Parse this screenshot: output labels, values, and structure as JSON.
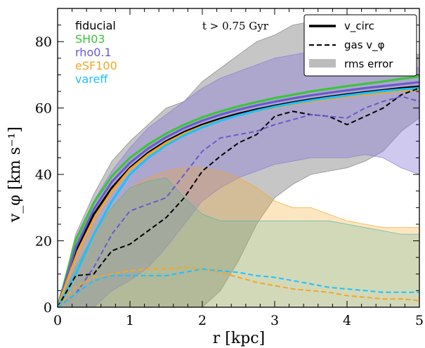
{
  "chart_data": {
    "type": "line",
    "xlabel": "r [kpc]",
    "ylabel": "v_φ [km s⁻¹]",
    "xlim": [
      0,
      5
    ],
    "ylim": [
      0,
      90
    ],
    "xticks": [
      0,
      1,
      2,
      3,
      4,
      5
    ],
    "yticks": [
      0,
      20,
      40,
      60,
      80
    ],
    "annotation": "t > 0.75 Gyr",
    "legend_position": "top-right",
    "legend": [
      {
        "label": "v_circ",
        "style": "solid"
      },
      {
        "label": "gas v_φ",
        "style": "dashed"
      },
      {
        "label": "rms error",
        "style": "band"
      }
    ],
    "series_labels": [
      {
        "text": "fiducial",
        "color": "#000000"
      },
      {
        "text": "SH03",
        "color": "#3cc43c"
      },
      {
        "text": "rho0.1",
        "color": "#6a5acd"
      },
      {
        "text": "eSF100",
        "color": "#f5a623"
      },
      {
        "text": "vareff",
        "color": "#1ec0ff"
      }
    ],
    "x": [
      0,
      0.25,
      0.5,
      0.75,
      1,
      1.25,
      1.5,
      1.75,
      2,
      2.25,
      2.5,
      2.75,
      3,
      3.25,
      3.5,
      3.75,
      4,
      4.25,
      4.5,
      4.75,
      5
    ],
    "circ": [
      {
        "name": "fiducial",
        "color": "#000000",
        "values": [
          0,
          17,
          28,
          36,
          42,
          46.5,
          50,
          52.8,
          55,
          56.8,
          58.3,
          59.6,
          60.7,
          61.7,
          62.6,
          63.4,
          64.1,
          64.8,
          65.4,
          66,
          66.5
        ]
      },
      {
        "name": "SH03",
        "color": "#3cc43c",
        "values": [
          0,
          20,
          31.5,
          39.5,
          45,
          49,
          52.3,
          55,
          57.2,
          59,
          60.5,
          61.8,
          63,
          64,
          65,
          65.8,
          66.6,
          67.3,
          68,
          68.8,
          69.5
        ]
      },
      {
        "name": "rho0.1",
        "color": "#6a5acd",
        "values": [
          0,
          18,
          29.5,
          37.8,
          43.5,
          47.8,
          51.2,
          54,
          56.2,
          58,
          59.5,
          60.8,
          61.9,
          62.9,
          63.8,
          64.6,
          65.3,
          66,
          66.6,
          67.2,
          67.8
        ]
      },
      {
        "name": "eSF100",
        "color": "#f5a623",
        "values": [
          0,
          15,
          26.5,
          35,
          41.5,
          46,
          49.5,
          52.3,
          54.5,
          56.3,
          57.8,
          59.1,
          60.2,
          61.2,
          62,
          62.8,
          63.5,
          64.1,
          64.7,
          65.2,
          65.6
        ]
      },
      {
        "name": "vareff",
        "color": "#1ec0ff",
        "values": [
          0,
          10,
          22,
          32,
          40,
          45,
          48.8,
          51.8,
          54.2,
          56.2,
          57.8,
          59.2,
          60.4,
          61.4,
          62.3,
          63.1,
          63.8,
          64.5,
          65.1,
          65.6,
          66
        ]
      }
    ],
    "gas": [
      {
        "name": "fiducial",
        "color": "#000000",
        "values": [
          0,
          9.5,
          10,
          17,
          19,
          23,
          27,
          33,
          41,
          45.5,
          49.5,
          52,
          57.5,
          59,
          58,
          57.5,
          55,
          57.5,
          60,
          64,
          66
        ]
      },
      {
        "name": "rho0.1",
        "color": "#6a5acd",
        "values": [
          0,
          4,
          12,
          22,
          29,
          31,
          33,
          40,
          47,
          51,
          52,
          53,
          55,
          56.5,
          58,
          57.5,
          57,
          60,
          62,
          63.5,
          62
        ]
      },
      {
        "name": "eSF100",
        "color": "#f5a623",
        "values": [
          0,
          6,
          9,
          10,
          11,
          11.5,
          11.5,
          12,
          11.5,
          10.5,
          9,
          7.5,
          6.5,
          5.5,
          5,
          4.5,
          3.5,
          3,
          2.5,
          2.5,
          2
        ]
      },
      {
        "name": "vareff",
        "color": "#1ec0ff",
        "values": [
          0,
          4,
          8,
          9.5,
          9.5,
          9.5,
          9.5,
          10.5,
          11.5,
          11,
          10.5,
          9.5,
          9,
          8,
          7,
          6,
          5.5,
          5,
          4.5,
          4.5,
          4.5
        ]
      }
    ],
    "bands": [
      {
        "name": "fiducial",
        "color": "#808080",
        "opacity": 0.45,
        "lower": [
          0,
          0,
          0,
          0,
          0,
          0,
          0,
          0,
          0,
          5,
          14,
          25,
          33,
          37,
          40,
          41,
          42,
          44,
          47,
          53,
          57
        ],
        "upper": [
          0,
          22,
          34,
          44,
          50,
          55,
          60,
          62,
          68,
          72,
          76,
          80,
          82,
          85,
          86,
          87,
          85,
          83,
          80,
          78,
          76
        ]
      },
      {
        "name": "rho0.1",
        "color": "#8878d8",
        "opacity": 0.4,
        "lower": [
          0,
          0,
          0,
          5,
          8,
          12,
          18,
          25,
          32,
          36,
          39,
          41,
          43,
          44,
          45,
          45,
          45,
          46,
          45,
          42,
          40
        ],
        "upper": [
          0,
          21,
          32,
          41,
          48,
          54,
          58,
          62,
          66,
          69,
          71,
          73,
          75,
          76,
          77,
          78,
          78,
          77,
          76,
          74,
          72
        ]
      },
      {
        "name": "eSF100",
        "color": "#f5a623",
        "opacity": 0.28,
        "lower": [
          0,
          0,
          0,
          0,
          0,
          0,
          0,
          0,
          0,
          0,
          0,
          0,
          0,
          0,
          0,
          0,
          0,
          0,
          0,
          0,
          0
        ],
        "upper": [
          0,
          12,
          24,
          30,
          36,
          39,
          41,
          42,
          42,
          41,
          39,
          36,
          32,
          30,
          30,
          28,
          26,
          25,
          24,
          24,
          24
        ]
      },
      {
        "name": "vareff",
        "color": "#50b4a0",
        "opacity": 0.25,
        "lower": [
          0,
          0,
          0,
          0,
          0,
          0,
          0,
          0,
          0,
          0,
          0,
          0,
          0,
          0,
          0,
          0,
          0,
          0,
          0,
          0,
          0
        ],
        "upper": [
          0,
          12,
          22,
          30,
          36,
          38,
          39,
          33,
          28,
          26,
          26,
          26,
          26,
          26,
          26,
          26,
          25,
          24,
          23,
          22,
          22
        ]
      }
    ]
  }
}
